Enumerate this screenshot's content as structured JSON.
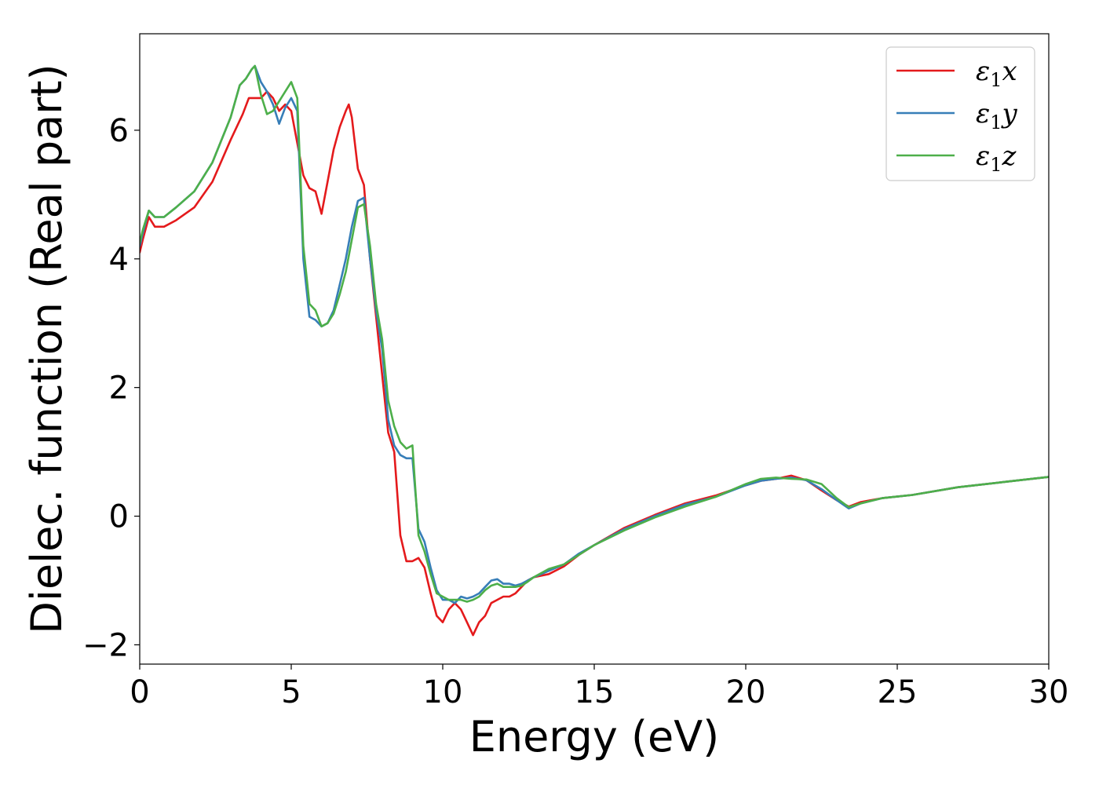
{
  "chart_data": {
    "type": "line",
    "title": "",
    "xlabel": "Energy (eV)",
    "ylabel": "Dielec. function (Real part)",
    "xlim": [
      0,
      30
    ],
    "ylim": [
      -2.3,
      7.5
    ],
    "xticks": [
      0,
      5,
      10,
      15,
      20,
      25,
      30
    ],
    "xtick_labels": [
      "0",
      "5",
      "10",
      "15",
      "20",
      "25",
      "30"
    ],
    "yticks": [
      -2,
      0,
      2,
      4,
      6
    ],
    "ytick_labels": [
      "−2",
      "0",
      "2",
      "4",
      "6"
    ],
    "grid": false,
    "legend_position": "top-right",
    "series": [
      {
        "name": "ε₁x",
        "legend_base": "ε",
        "legend_sub": "1",
        "legend_tail": "x",
        "color": "#e41a1c",
        "x": [
          0,
          0.1,
          0.3,
          0.5,
          0.8,
          1.2,
          1.8,
          2.4,
          3.0,
          3.4,
          3.6,
          3.8,
          4.0,
          4.2,
          4.4,
          4.6,
          4.8,
          5.0,
          5.2,
          5.4,
          5.6,
          5.8,
          6.0,
          6.2,
          6.4,
          6.6,
          6.8,
          6.9,
          7.0,
          7.2,
          7.4,
          7.6,
          7.8,
          8.0,
          8.2,
          8.4,
          8.6,
          8.8,
          9.0,
          9.2,
          9.4,
          9.6,
          9.8,
          10.0,
          10.2,
          10.4,
          10.6,
          10.8,
          11.0,
          11.2,
          11.4,
          11.6,
          11.8,
          12.0,
          12.2,
          12.4,
          12.6,
          12.8,
          13.0,
          13.5,
          14.0,
          14.5,
          15.0,
          16.0,
          17.0,
          18.0,
          19.0,
          20.0,
          20.5,
          21.0,
          21.5,
          22.0,
          22.5,
          23.0,
          23.4,
          23.8,
          24.5,
          25.5,
          27.0,
          28.5,
          30.0
        ],
        "y": [
          4.1,
          4.3,
          4.65,
          4.5,
          4.5,
          4.6,
          4.8,
          5.2,
          5.85,
          6.25,
          6.5,
          6.5,
          6.5,
          6.6,
          6.5,
          6.3,
          6.4,
          6.3,
          5.8,
          5.3,
          5.1,
          5.05,
          4.7,
          5.2,
          5.7,
          6.05,
          6.3,
          6.4,
          6.2,
          5.4,
          5.15,
          4.0,
          3.1,
          2.2,
          1.3,
          1.0,
          -0.3,
          -0.7,
          -0.7,
          -0.65,
          -0.8,
          -1.2,
          -1.55,
          -1.65,
          -1.45,
          -1.35,
          -1.45,
          -1.65,
          -1.85,
          -1.65,
          -1.55,
          -1.35,
          -1.3,
          -1.25,
          -1.25,
          -1.2,
          -1.1,
          -1.0,
          -0.95,
          -0.9,
          -0.78,
          -0.6,
          -0.45,
          -0.18,
          0.02,
          0.2,
          0.32,
          0.48,
          0.55,
          0.58,
          0.63,
          0.56,
          0.4,
          0.25,
          0.15,
          0.22,
          0.28,
          0.33,
          0.45,
          0.53,
          0.61
        ]
      },
      {
        "name": "ε₁y",
        "legend_base": "ε",
        "legend_sub": "1",
        "legend_tail": "y",
        "color": "#377eb8",
        "x": [
          0,
          0.1,
          0.3,
          0.5,
          0.8,
          1.2,
          1.8,
          2.4,
          3.0,
          3.3,
          3.5,
          3.7,
          3.8,
          4.0,
          4.2,
          4.4,
          4.6,
          4.8,
          5.0,
          5.2,
          5.4,
          5.6,
          5.8,
          6.0,
          6.2,
          6.4,
          6.6,
          6.8,
          7.0,
          7.2,
          7.4,
          7.6,
          7.8,
          8.0,
          8.2,
          8.4,
          8.6,
          8.8,
          9.0,
          9.2,
          9.4,
          9.6,
          9.8,
          10.0,
          10.2,
          10.4,
          10.6,
          10.8,
          11.0,
          11.2,
          11.4,
          11.6,
          11.8,
          12.0,
          12.2,
          12.4,
          12.6,
          12.8,
          13.0,
          13.5,
          14.0,
          14.5,
          15.0,
          16.0,
          17.0,
          18.0,
          19.0,
          20.0,
          20.5,
          21.0,
          21.5,
          22.0,
          22.5,
          23.0,
          23.4,
          23.8,
          24.5,
          25.5,
          27.0,
          28.5,
          30.0
        ],
        "y": [
          4.2,
          4.4,
          4.75,
          4.65,
          4.65,
          4.8,
          5.05,
          5.5,
          6.2,
          6.7,
          6.8,
          6.95,
          7.0,
          6.75,
          6.6,
          6.4,
          6.1,
          6.35,
          6.5,
          6.3,
          4.0,
          3.1,
          3.05,
          2.95,
          3.0,
          3.2,
          3.6,
          4.0,
          4.5,
          4.9,
          4.95,
          4.0,
          3.2,
          2.6,
          1.5,
          1.1,
          0.95,
          0.9,
          0.9,
          -0.2,
          -0.4,
          -0.8,
          -1.15,
          -1.3,
          -1.3,
          -1.35,
          -1.25,
          -1.28,
          -1.25,
          -1.2,
          -1.1,
          -1.0,
          -0.98,
          -1.05,
          -1.05,
          -1.08,
          -1.05,
          -1.0,
          -0.95,
          -0.85,
          -0.75,
          -0.58,
          -0.45,
          -0.2,
          0.0,
          0.18,
          0.3,
          0.48,
          0.55,
          0.58,
          0.6,
          0.56,
          0.42,
          0.25,
          0.12,
          0.2,
          0.28,
          0.33,
          0.45,
          0.53,
          0.61
        ]
      },
      {
        "name": "ε₁z",
        "legend_base": "ε",
        "legend_sub": "1",
        "legend_tail": "z",
        "color": "#4daf4a",
        "x": [
          0,
          0.1,
          0.3,
          0.5,
          0.8,
          1.2,
          1.8,
          2.4,
          3.0,
          3.3,
          3.5,
          3.7,
          3.8,
          4.0,
          4.2,
          4.4,
          4.6,
          4.8,
          5.0,
          5.2,
          5.4,
          5.6,
          5.8,
          6.0,
          6.2,
          6.4,
          6.6,
          6.8,
          7.0,
          7.2,
          7.4,
          7.6,
          7.8,
          8.0,
          8.2,
          8.4,
          8.6,
          8.8,
          9.0,
          9.2,
          9.4,
          9.6,
          9.8,
          10.0,
          10.2,
          10.4,
          10.6,
          10.8,
          11.0,
          11.2,
          11.4,
          11.6,
          11.8,
          12.0,
          12.2,
          12.4,
          12.6,
          12.8,
          13.0,
          13.5,
          14.0,
          14.5,
          15.0,
          16.0,
          17.0,
          18.0,
          19.0,
          20.0,
          20.5,
          21.0,
          21.5,
          22.0,
          22.5,
          23.0,
          23.4,
          23.8,
          24.5,
          25.5,
          27.0,
          28.5,
          30.0
        ],
        "y": [
          4.25,
          4.45,
          4.75,
          4.65,
          4.65,
          4.8,
          5.05,
          5.5,
          6.2,
          6.7,
          6.8,
          6.95,
          7.0,
          6.55,
          6.25,
          6.3,
          6.45,
          6.6,
          6.75,
          6.5,
          4.2,
          3.3,
          3.2,
          2.95,
          3.0,
          3.15,
          3.45,
          3.8,
          4.3,
          4.8,
          4.85,
          4.2,
          3.3,
          2.75,
          1.8,
          1.4,
          1.15,
          1.05,
          1.1,
          -0.3,
          -0.55,
          -0.9,
          -1.2,
          -1.25,
          -1.3,
          -1.3,
          -1.3,
          -1.33,
          -1.3,
          -1.25,
          -1.15,
          -1.08,
          -1.05,
          -1.1,
          -1.1,
          -1.1,
          -1.08,
          -1.02,
          -0.95,
          -0.82,
          -0.75,
          -0.6,
          -0.45,
          -0.22,
          -0.02,
          0.15,
          0.3,
          0.5,
          0.58,
          0.6,
          0.58,
          0.57,
          0.5,
          0.28,
          0.14,
          0.2,
          0.28,
          0.33,
          0.45,
          0.53,
          0.61
        ]
      }
    ]
  }
}
